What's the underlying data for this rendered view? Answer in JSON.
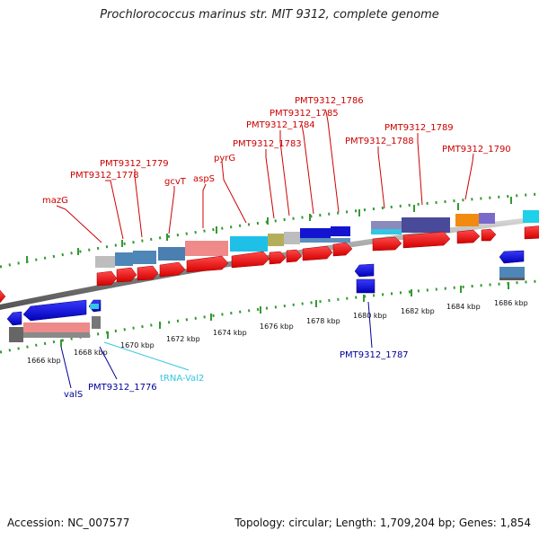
{
  "title": "Prochlorococcus marinus str. MIT 9312, complete genome",
  "footer": {
    "accession": "Accession: NC_007577",
    "summary": "Topology: circular; Length: 1,709,204 bp; Genes: 1,854"
  },
  "colors": {
    "forward_label": "#cc0000",
    "reverse_label": "#000099",
    "trna_label": "#33c6e0",
    "tick": "#339933",
    "backbone": "#888888"
  },
  "scale": [
    "1666 kbp",
    "1668 kbp",
    "1670 kbp",
    "1672 kbp",
    "1674 kbp",
    "1676 kbp",
    "1678 kbp",
    "1680 kbp",
    "1682 kbp",
    "1684 kbp",
    "1686 kbp"
  ],
  "forward_labels": [
    "mazG",
    "PMT9312_1778",
    "PMT9312_1779",
    "gcvT",
    "aspS",
    "pyrG",
    "PMT9312_1783",
    "PMT9312_1784",
    "PMT9312_1785",
    "PMT9312_1786",
    "PMT9312_1788",
    "PMT9312_1789",
    "PMT9312_1790"
  ],
  "reverse_labels": [
    "valS",
    "PMT9312_1776",
    "tRNA-Val2",
    "PMT9312_1787"
  ]
}
